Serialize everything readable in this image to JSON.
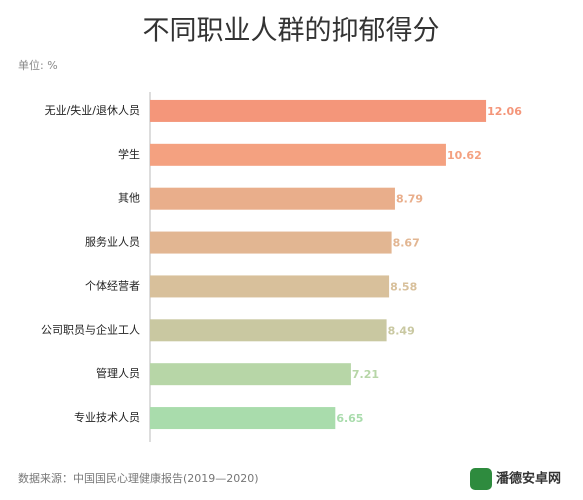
{
  "chart_data": {
    "type": "hbar",
    "title": "不同职业人群的抑郁得分",
    "unit_note": "单位: %",
    "source": "数据来源：中国国民心理健康报告(2019—2020)",
    "watermark": "潘德安卓网",
    "categories": [
      "无业/失业/退休人员",
      "学生",
      "其他",
      "服务业人员",
      "个体经营者",
      "公司职员与企业工人",
      "管理人员",
      "专业技术人员"
    ],
    "values": [
      12.06,
      10.62,
      8.79,
      8.67,
      8.58,
      8.49,
      7.21,
      6.65
    ],
    "colors": [
      "#f4967a",
      "#f4a180",
      "#e9ae8b",
      "#e2b692",
      "#d8c09b",
      "#c9c8a1",
      "#b7d6a7",
      "#a9dcac"
    ],
    "xlim": [
      0,
      15
    ]
  }
}
